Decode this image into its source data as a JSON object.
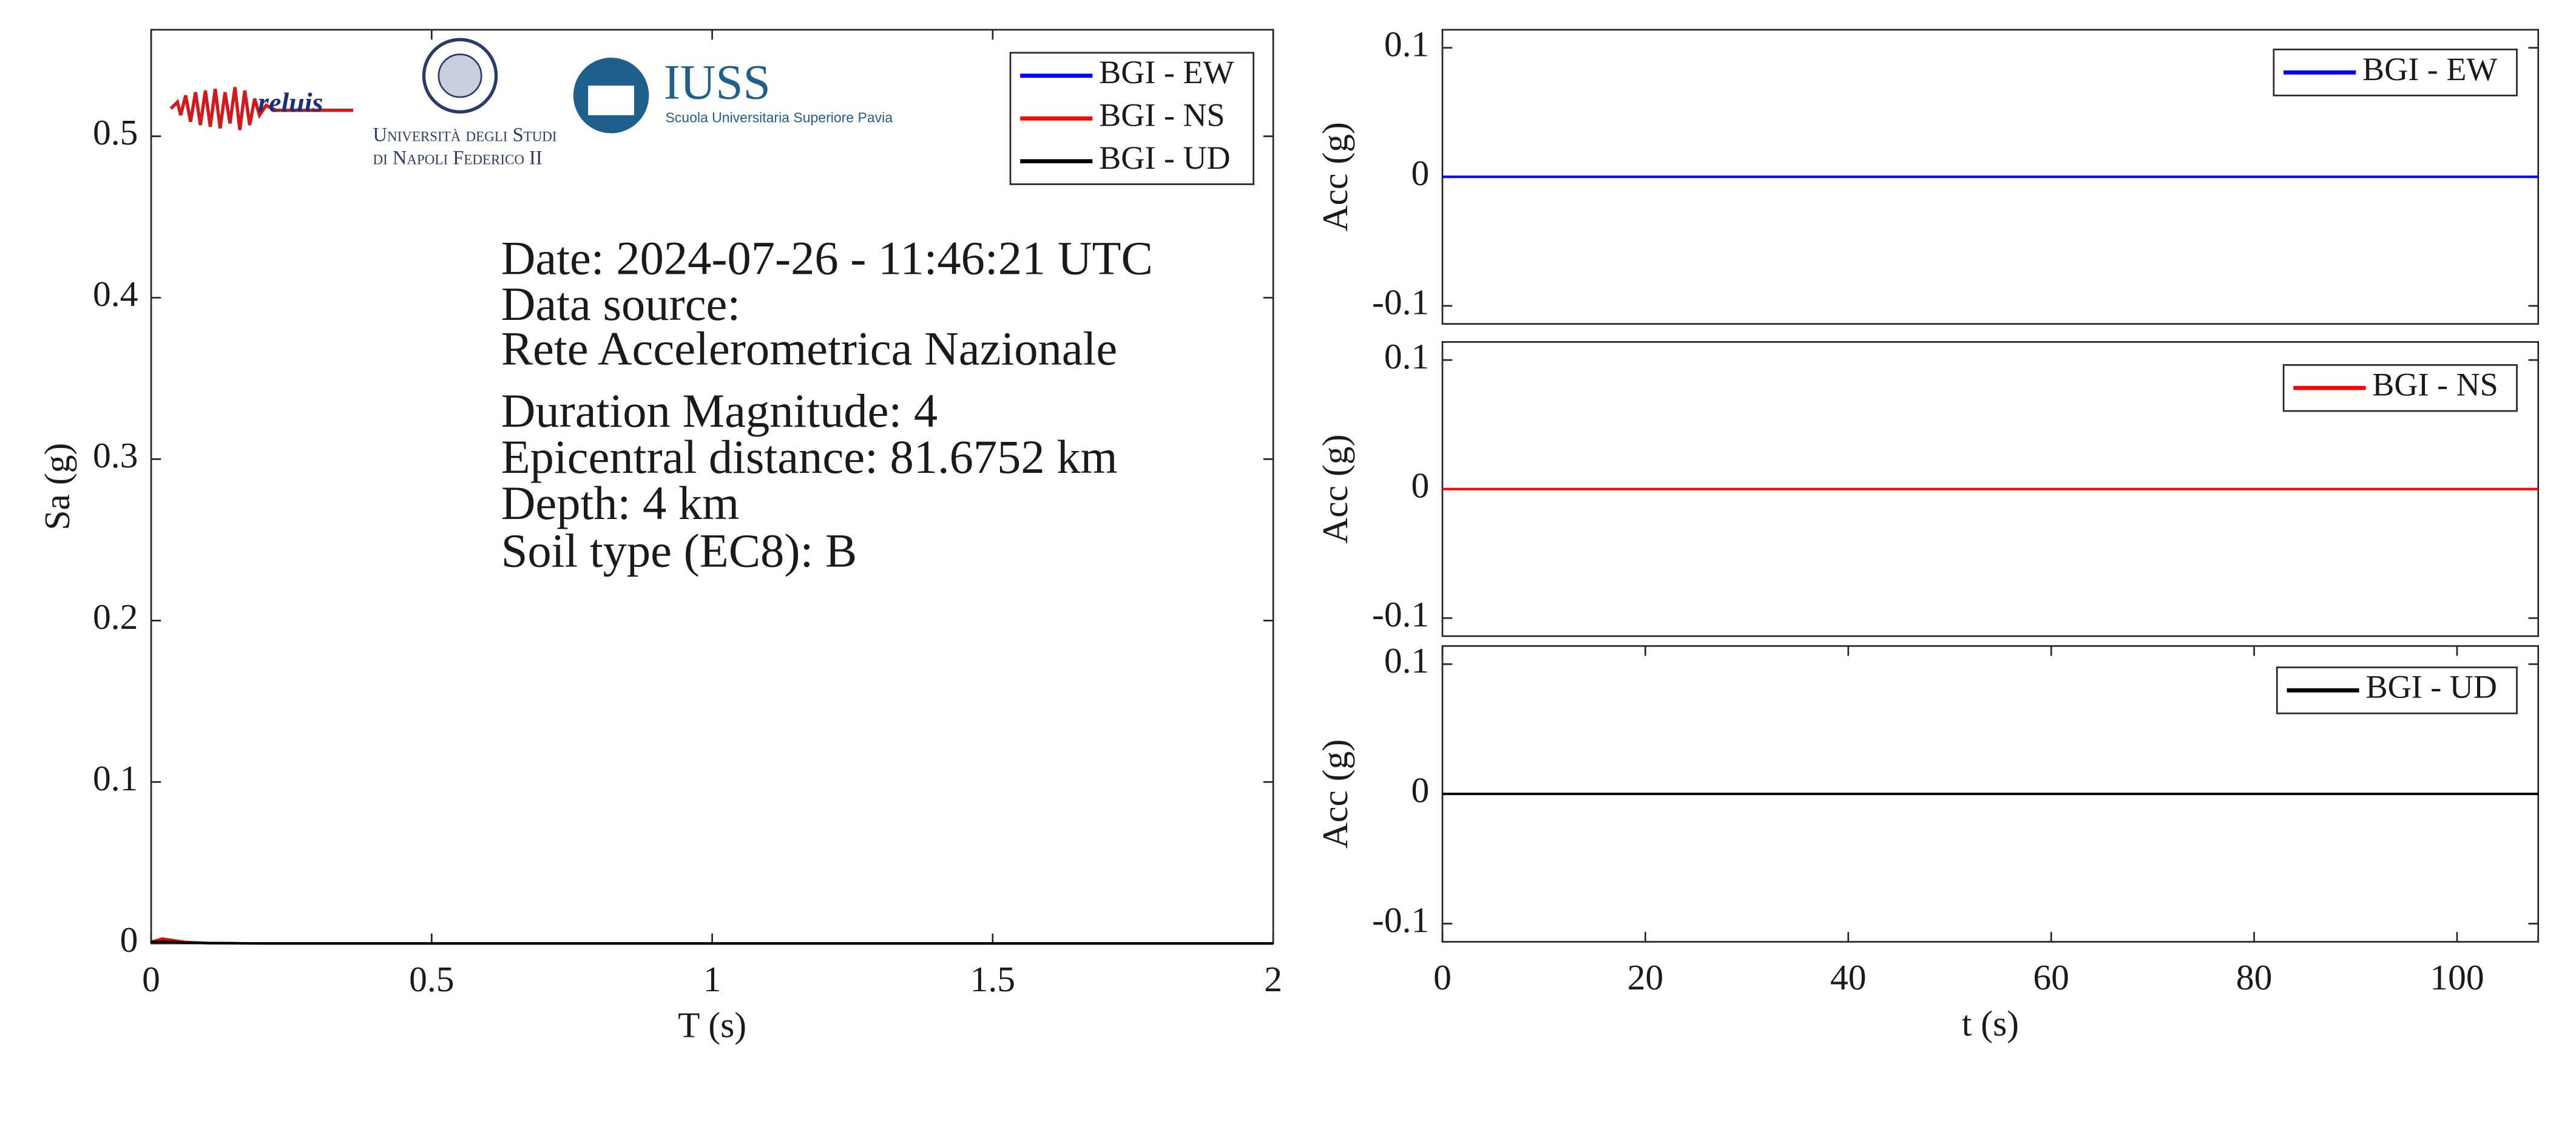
{
  "chart_data": [
    {
      "type": "line",
      "xlabel": "T (s)",
      "ylabel": "Sa (g)",
      "x": [
        0,
        0.02,
        0.04,
        0.06,
        0.1,
        0.2,
        0.5,
        1,
        1.5,
        2
      ],
      "series": [
        {
          "name": "BGI - EW",
          "color": "#0000ff",
          "values": [
            0.001,
            0.002,
            0.001,
            0.0005,
            0.0002,
            0,
            0,
            0,
            0,
            0
          ]
        },
        {
          "name": "BGI - NS",
          "color": "#ff0000",
          "values": [
            0.001,
            0.003,
            0.002,
            0.001,
            0.0003,
            0,
            0,
            0,
            0,
            0
          ]
        },
        {
          "name": "BGI - UD",
          "color": "#000000",
          "values": [
            0.001,
            0.001,
            0.001,
            0.0005,
            0.0002,
            0,
            0,
            0,
            0,
            0
          ]
        }
      ],
      "xlim": [
        0,
        2
      ],
      "ylim": [
        0,
        0.566
      ],
      "xticks": [
        0,
        0.5,
        1,
        1.5,
        2
      ],
      "yticks": [
        0,
        0.1,
        0.2,
        0.3,
        0.4,
        0.5
      ],
      "legend": "upper right",
      "annotation": [
        "Date: 2024-07-26 - 11:46:21 UTC",
        "Data source:",
        "Rete Accelerometrica Nazionale",
        "Duration Magnitude: 4",
        "Epicentral distance: 81.6752 km",
        "Depth: 4 km",
        "Soil type (EC8): B"
      ]
    },
    {
      "type": "line",
      "ylabel": "Acc (g)",
      "x": [
        0,
        20,
        40,
        60,
        80,
        100,
        108
      ],
      "series": [
        {
          "name": "BGI - EW",
          "color": "#0000ff",
          "values": [
            0,
            0,
            0,
            0,
            0,
            0,
            0
          ]
        }
      ],
      "xlim": [
        0,
        108
      ],
      "ylim": [
        -0.114,
        0.114
      ],
      "yticks": [
        -0.1,
        0,
        0.1
      ],
      "legend": "upper right"
    },
    {
      "type": "line",
      "ylabel": "Acc (g)",
      "x": [
        0,
        20,
        40,
        60,
        80,
        100,
        108
      ],
      "series": [
        {
          "name": "BGI - NS",
          "color": "#ff0000",
          "values": [
            0,
            0,
            0,
            0,
            0,
            0,
            0
          ]
        }
      ],
      "xlim": [
        0,
        108
      ],
      "ylim": [
        -0.114,
        0.114
      ],
      "yticks": [
        -0.1,
        0,
        0.1
      ],
      "legend": "upper right"
    },
    {
      "type": "line",
      "xlabel": "t (s)",
      "ylabel": "Acc (g)",
      "x": [
        0,
        20,
        40,
        60,
        80,
        100,
        108
      ],
      "series": [
        {
          "name": "BGI - UD",
          "color": "#000000",
          "values": [
            0,
            0,
            0,
            0,
            0,
            0,
            0
          ]
        }
      ],
      "xlim": [
        0,
        108
      ],
      "ylim": [
        -0.114,
        0.114
      ],
      "xticks": [
        0,
        20,
        40,
        60,
        80,
        100
      ],
      "yticks": [
        -0.1,
        0,
        0.1
      ],
      "legend": "upper right"
    }
  ],
  "logos": {
    "reluis": "reluis",
    "unina": [
      "Università degli Studi",
      "di Napoli Federico II"
    ],
    "iuss": "IUSS",
    "iuss_sub": "Scuola Universitaria Superiore Pavia"
  }
}
